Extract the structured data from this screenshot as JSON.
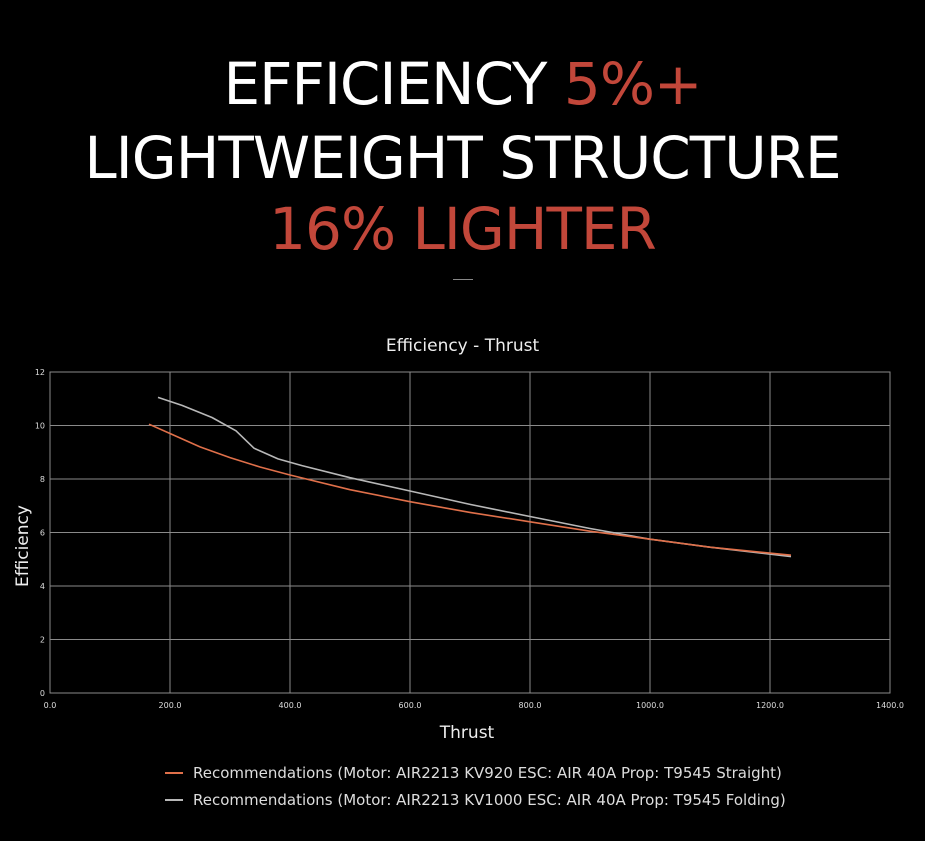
{
  "headline": {
    "line1_white": "EFFICIENCY",
    "line1_accent": "5%+",
    "line2": "LIGHTWEIGHT STRUCTURE",
    "line3": "16% LIGHTER"
  },
  "colors": {
    "accent": "#c2473a",
    "series_orange": "#e0704a",
    "series_gray": "#b8b8b8",
    "grid": "#8a8a8a"
  },
  "chart_data": {
    "type": "line",
    "title": "Efficiency - Thrust",
    "xlabel": "Thrust",
    "ylabel": "Efficiency",
    "xlim": [
      0,
      1400
    ],
    "ylim": [
      0,
      12
    ],
    "x_ticks": [
      "0.0",
      "200.0",
      "400.0",
      "600.0",
      "800.0",
      "1000.0",
      "1200.0",
      "1400.0"
    ],
    "y_ticks": [
      "0",
      "2",
      "4",
      "6",
      "8",
      "10",
      "12"
    ],
    "grid": true,
    "legend_position": "bottom",
    "series": [
      {
        "name": "Recommendations (Motor: AIR2213 KV920 ESC: AIR 40A Prop: T9545 Straight)",
        "color": "#e0704a",
        "x": [
          165,
          200,
          250,
          300,
          350,
          400,
          500,
          600,
          700,
          800,
          900,
          1000,
          1100,
          1235
        ],
        "y": [
          10.05,
          9.7,
          9.2,
          8.8,
          8.45,
          8.15,
          7.6,
          7.15,
          6.75,
          6.4,
          6.05,
          5.75,
          5.45,
          5.15
        ]
      },
      {
        "name": "Recommendations (Motor: AIR2213 KV1000 ESC: AIR 40A Prop: T9545 Folding)",
        "color": "#b8b8b8",
        "x": [
          180,
          220,
          270,
          310,
          340,
          380,
          420,
          500,
          600,
          700,
          800,
          900,
          1000,
          1100,
          1235
        ],
        "y": [
          11.05,
          10.75,
          10.3,
          9.8,
          9.15,
          8.75,
          8.5,
          8.05,
          7.55,
          7.05,
          6.6,
          6.15,
          5.75,
          5.45,
          5.1
        ]
      }
    ]
  }
}
